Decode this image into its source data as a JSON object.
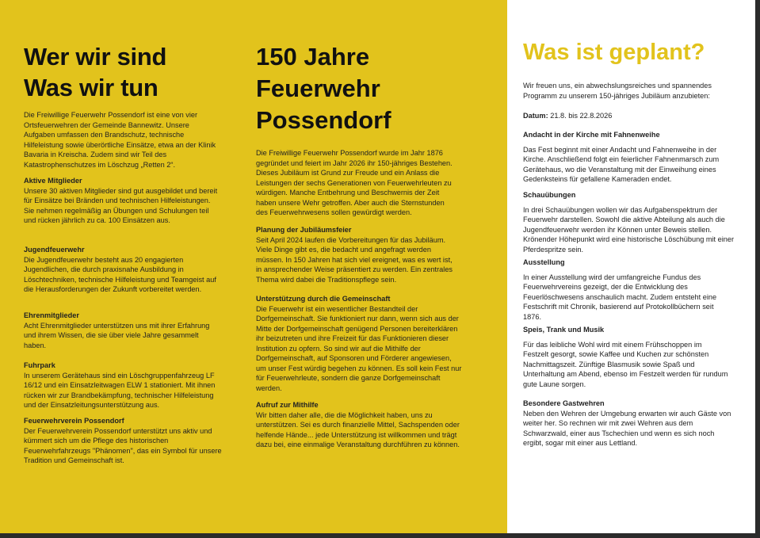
{
  "colors": {
    "accent": "#e2c31c"
  },
  "col1": {
    "title_line1": "Wer wir sind",
    "title_line2": "Was wir tun",
    "intro": "Die Freiwillige Feuerwehr Possendorf ist eine von vier Ortsfeuerwehren der Gemeinde Bannewitz. Unsere Aufgaben umfassen den Brandschutz, technische Hilfeleistung sowie überörtliche Einsätze, etwa an der Klinik Bavaria in Kreischa. Zudem sind wir Teil des Katastrophenschutzes im Löschzug „Retten 2“.",
    "sections": [
      {
        "title": "Aktive Mitglieder",
        "text": "Unsere 30 aktiven Mitglieder sind gut ausgebildet und bereit für Einsätze bei Bränden und technischen Hilfeleistungen. Sie nehmen regelmäßig an Übungen und Schulungen teil und rücken jährlich zu ca. 100 Einsätzen aus."
      },
      {
        "title": "Jugendfeuerwehr",
        "text": "Die Jugendfeuerwehr besteht aus 20 engagierten Jugendlichen, die durch praxisnahe Ausbildung in Löschtechniken, technische Hilfeleistung und Teamgeist auf die Herausforderungen der Zukunft vorbereitet werden."
      },
      {
        "title": "Ehrenmitglieder",
        "text": "Acht Ehrenmitglieder unterstützen uns mit ihrer Erfahrung und ihrem Wissen, die sie über viele Jahre gesammelt haben."
      },
      {
        "title": "Fuhrpark",
        "text": "In unserem Gerätehaus sind ein Löschgruppenfahrzeug LF 16/12 und ein Einsatzleitwagen ELW 1 stationiert. Mit ihnen rücken wir zur Brandbekämpfung, technischer Hilfeleistung und der Einsatzleitungsunterstützung aus."
      },
      {
        "title": "Feuerwehrverein Possendorf",
        "text": "Der Feuerwehrverein Possendorf unterstützt uns aktiv und kümmert sich um die Pflege des historischen Feuerwehrfahrzeugs \"Phänomen\", das ein Symbol für unsere Tradition und Gemeinschaft ist."
      }
    ]
  },
  "col2": {
    "title_line1": "150 Jahre",
    "title_line2": "Feuerwehr",
    "title_line3": "Possendorf",
    "intro": "Die Freiwillige Feuerwehr Possendorf wurde im Jahr 1876 gegründet und feiert im Jahr 2026 ihr 150-jähriges Bestehen. Dieses Jubiläum ist Grund zur Freude und ein Anlass die Leistungen der sechs Generationen von Feuerwehrleuten zu würdigen. Manche Entbehrung und Beschwernis der Zeit haben unsere Wehr getroffen. Aber auch die Sternstunden des Feuerwehrwesens sollen gewürdigt werden.",
    "sections": [
      {
        "title": "Planung der Jubiläumsfeier",
        "text": "Seit April 2024 laufen die Vorbereitungen für das Jubiläum. Viele Dinge gibt es, die bedacht und angefragt werden müssen. In 150 Jahren hat sich viel ereignet, was es wert ist, in ansprechender Weise präsentiert zu werden. Ein zentrales Thema wird dabei die Traditionspflege sein."
      },
      {
        "title": "Unterstützung durch die Gemeinschaft",
        "text": "Die Feuerwehr ist ein wesentlicher Bestandteil der Dorfgemeinschaft. Sie funktioniert nur dann, wenn sich aus der Mitte der Dorfgemeinschaft genügend Personen bereiterklären ihr beizutreten und ihre Freizeit für das Funktionieren dieser Institution zu opfern. So sind wir auf die Mithilfe der Dorfgemeinschaft, auf Sponsoren und Förderer angewiesen, um unser Fest würdig begehen zu können. Es soll kein Fest nur für Feuerwehrleute, sondern die ganze Dorfgemeinschaft werden."
      },
      {
        "title": "Aufruf zur Mithilfe",
        "text": "Wir bitten daher alle, die die Möglichkeit haben, uns zu unterstützen. Sei es durch finanzielle Mittel, Sachspenden oder helfende Hände... jede Unterstützung ist willkommen und trägt dazu bei, eine einmalige Veranstaltung durchführen zu können."
      }
    ]
  },
  "col3": {
    "title": "Was ist geplant?",
    "intro": "Wir freuen uns, ein abwechslungsreiches und spannendes Programm zu unserem 150-jähriges Jubiläum anzubieten:",
    "date_label": "Datum:",
    "date_value": " 21.8. bis 22.8.2026",
    "sections": [
      {
        "title": "Andacht in der Kirche mit Fahnenweihe",
        "text": "Das Fest beginnt mit einer Andacht und Fahnenweihe in der Kirche. Anschließend folgt ein feierlicher Fahnenmarsch zum Gerätehaus, wo die Veranstaltung mit der Einweihung eines Gedenksteins für gefallene Kameraden endet."
      },
      {
        "title": "Schauübungen",
        "text": "In drei Schauübungen wollen wir das Aufgabenspektrum der Feuerwehr darstellen. Sowohl die aktive Abteilung als auch die Jugendfeuerwehr werden ihr Können unter Beweis stellen. Krönender Höhepunkt wird eine historische Löschübung mit einer Pferdespritze sein."
      },
      {
        "title": "Ausstellung",
        "text": "In einer Ausstellung wird der umfangreiche Fundus des Feuerwehrvereins gezeigt, der die Entwicklung des Feuerlöschwesens anschaulich macht. Zudem entsteht eine Festschrift mit Chronik, basierend auf Protokollbüchern seit 1876."
      },
      {
        "title": "Speis, Trank und Musik",
        "text": "Für das leibliche Wohl wird mit einem Frühschoppen im Festzelt gesorgt, sowie Kaffee und Kuchen zur schönsten Nachmittagszeit. Zünftige Blasmusik sowie Spaß und Unterhaltung am Abend, ebenso im Festzelt werden für rundum gute Laune sorgen."
      },
      {
        "title": "Besondere Gastwehren",
        "text": "Neben den Wehren der Umgebung erwarten wir auch Gäste von weiter her. So rechnen wir mit zwei Wehren aus dem Schwarzwald, einer aus Tschechien und wenn es sich noch ergibt, sogar mit einer aus Lettland."
      }
    ]
  }
}
